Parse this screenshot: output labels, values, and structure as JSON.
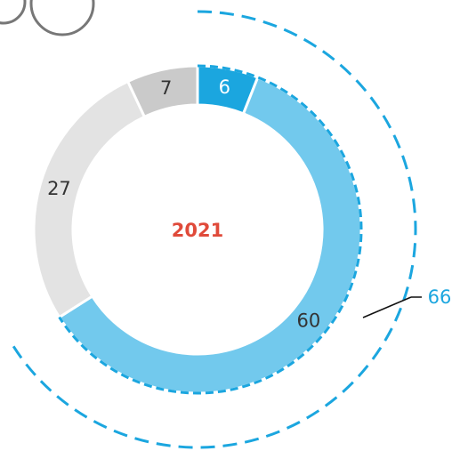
{
  "chart_data": {
    "type": "donut",
    "center_label": "2021",
    "values": [
      6,
      60,
      27,
      7
    ],
    "colors": [
      "#1ba6df",
      "#72c9ed",
      "#e3e3e3",
      "#cacaca"
    ],
    "label_colors": [
      "#ffffff",
      "#333333",
      "#333333",
      "#333333"
    ],
    "annotation": {
      "value": 66,
      "color": "#1ba6df"
    }
  }
}
